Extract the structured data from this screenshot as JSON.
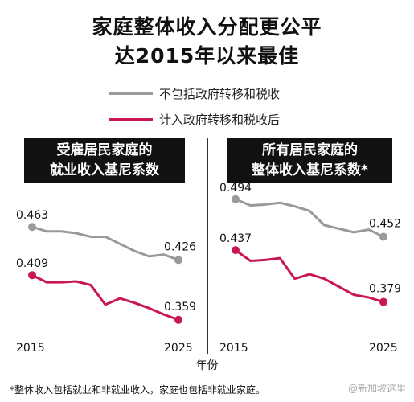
{
  "title_lines": [
    "家庭整体收入分配更公平",
    "达2015年以来最佳"
  ],
  "legend": [
    {
      "label": "不包括政府转移和税收",
      "color": "#9a9a9a"
    },
    {
      "label": "计入政府转移和税收后",
      "color": "#c8184f"
    }
  ],
  "xaxis_title": "年份",
  "footnote": "*整体收入包括就业和非就业收入，家庭也包括非就业家庭。",
  "watermark": "@新加坡这里",
  "chart_data": [
    {
      "type": "line",
      "title": "受雇居民家庭的\n就业收入基尼系数",
      "x": [
        2015,
        2016,
        2017,
        2018,
        2019,
        2020,
        2021,
        2022,
        2023,
        2024,
        2025
      ],
      "xticks": [
        "2015",
        "2025"
      ],
      "ylim": [
        0.33,
        0.51
      ],
      "series": [
        {
          "name": "不包括政府转移和税收",
          "color": "#9a9a9a",
          "values": [
            0.463,
            0.458,
            0.458,
            0.456,
            0.452,
            0.452,
            0.444,
            0.436,
            0.43,
            0.432,
            0.426
          ],
          "labels": {
            "first": "0.463",
            "last": "0.426"
          }
        },
        {
          "name": "计入政府转移和税收后",
          "color": "#c8184f",
          "values": [
            0.409,
            0.401,
            0.401,
            0.402,
            0.398,
            0.376,
            0.383,
            0.378,
            0.372,
            0.365,
            0.359
          ],
          "labels": {
            "first": "0.409",
            "last": "0.359"
          }
        }
      ]
    },
    {
      "type": "line",
      "title": "所有居民家庭的\n整体收入基尼系数*",
      "x": [
        2015,
        2016,
        2017,
        2018,
        2019,
        2020,
        2021,
        2022,
        2023,
        2024,
        2025
      ],
      "xticks": [
        "2015",
        "2025"
      ],
      "ylim": [
        0.33,
        0.51
      ],
      "series": [
        {
          "name": "不包括政府转移和税收",
          "color": "#9a9a9a",
          "values": [
            0.494,
            0.487,
            0.488,
            0.49,
            0.486,
            0.481,
            0.465,
            0.461,
            0.457,
            0.46,
            0.452
          ],
          "labels": {
            "first": "0.494",
            "last": "0.452"
          }
        },
        {
          "name": "计入政府转移和税收后",
          "color": "#c8184f",
          "values": [
            0.437,
            0.425,
            0.426,
            0.428,
            0.405,
            0.41,
            0.405,
            0.396,
            0.387,
            0.384,
            0.379
          ],
          "labels": {
            "first": "0.437",
            "last": "0.379"
          }
        }
      ]
    }
  ]
}
